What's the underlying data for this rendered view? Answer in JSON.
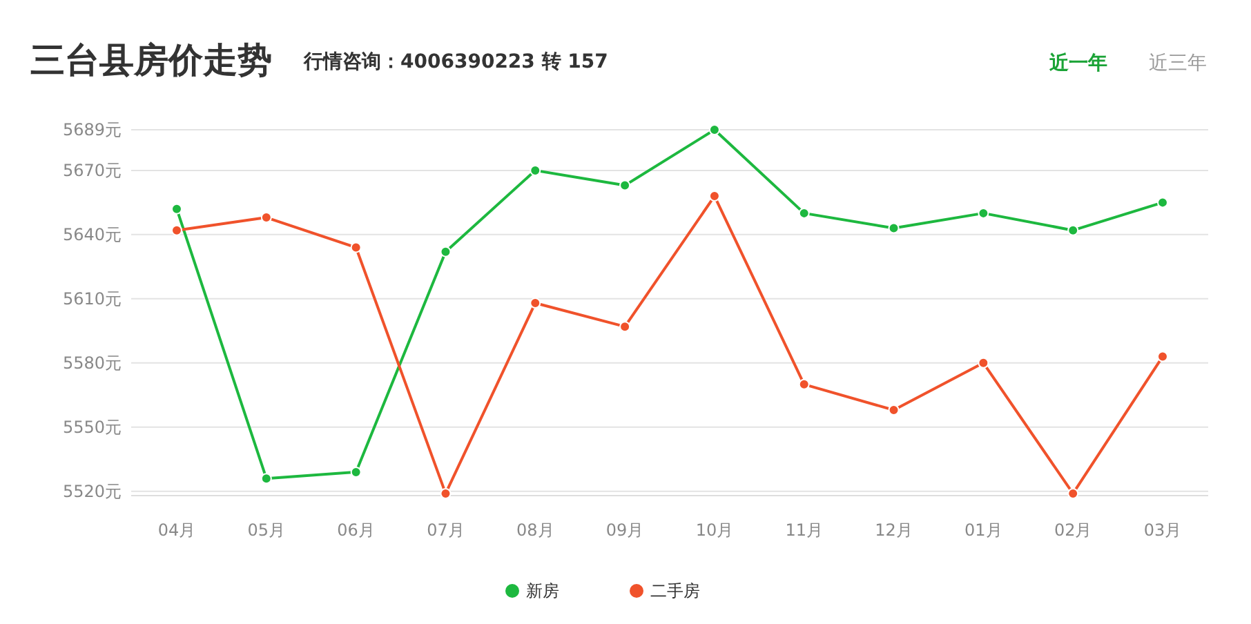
{
  "chart_data": {
    "type": "line",
    "title": "三台县房价走势",
    "subtitle": "行情咨询：4006390223 转 157",
    "annotations": [
      "近一年",
      "近三年"
    ],
    "categories": [
      "04月",
      "05月",
      "06月",
      "07月",
      "08月",
      "09月",
      "10月",
      "11月",
      "12月",
      "01月",
      "02月",
      "03月"
    ],
    "series": [
      {
        "name": "新房",
        "color": "#1db83f",
        "values": [
          5652,
          5526,
          5529,
          5632,
          5670,
          5663,
          5689,
          5650,
          5643,
          5650,
          5642,
          5655
        ]
      },
      {
        "name": "二手房",
        "color": "#f0522b",
        "values": [
          5642,
          5648,
          5634,
          5519,
          5608,
          5597,
          5658,
          5570,
          5558,
          5580,
          5519,
          5583
        ]
      }
    ],
    "ylim": [
      5518,
      5689
    ],
    "yticks": [
      {
        "value": 5520,
        "label": "5520元"
      },
      {
        "value": 5550,
        "label": "5550元"
      },
      {
        "value": 5580,
        "label": "5580元"
      },
      {
        "value": 5610,
        "label": "5610元"
      },
      {
        "value": 5640,
        "label": "5640元"
      },
      {
        "value": 5670,
        "label": "5670元"
      },
      {
        "value": 5689,
        "label": "5689元"
      }
    ],
    "grid": "y",
    "legend": "bottom",
    "marker": "circle",
    "line_style": "solid"
  }
}
